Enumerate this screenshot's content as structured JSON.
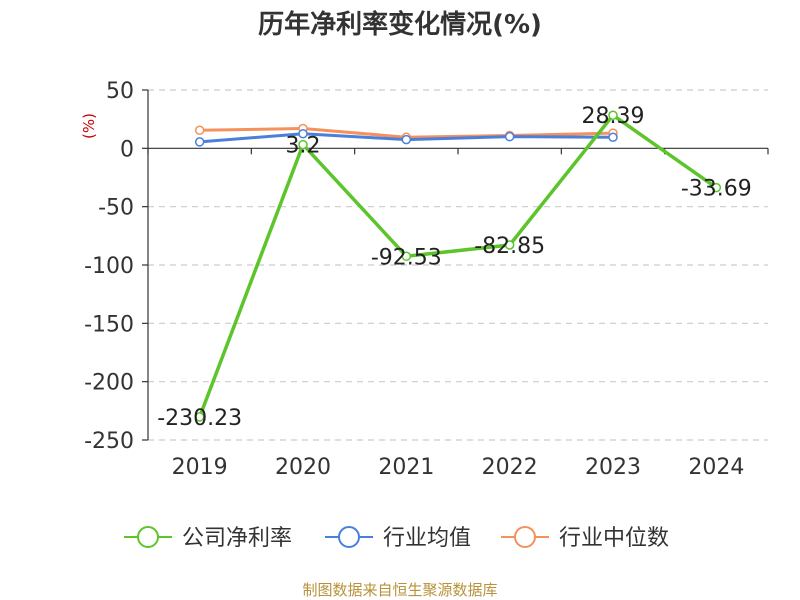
{
  "chart_data": {
    "type": "line",
    "title": "历年净利率变化情况(%)",
    "ylabel": "(%)",
    "xlabel": "",
    "categories": [
      "2019",
      "2020",
      "2021",
      "2022",
      "2023",
      "2024"
    ],
    "ylim": [
      -250,
      50
    ],
    "yticks": [
      50,
      0,
      -50,
      -100,
      -150,
      -200,
      -250
    ],
    "grid": true,
    "legend": "bottom",
    "series": [
      {
        "name": "公司净利率",
        "color": "#5cc52b",
        "values": [
          -230.23,
          3.2,
          -92.53,
          -82.85,
          28.39,
          -33.69
        ],
        "labels": [
          "-230.23",
          "3.2",
          "-92.53",
          "-82.85",
          "28.39",
          "-33.69"
        ]
      },
      {
        "name": "行业均值",
        "color": "#4a7fdb",
        "values": [
          5.5,
          12.5,
          7.5,
          10.0,
          9.5,
          null
        ]
      },
      {
        "name": "行业中位数",
        "color": "#f4925e",
        "values": [
          15.5,
          17.0,
          9.5,
          11.0,
          13.0,
          null
        ]
      }
    ]
  },
  "source": "制图数据来自恒生聚源数据库"
}
